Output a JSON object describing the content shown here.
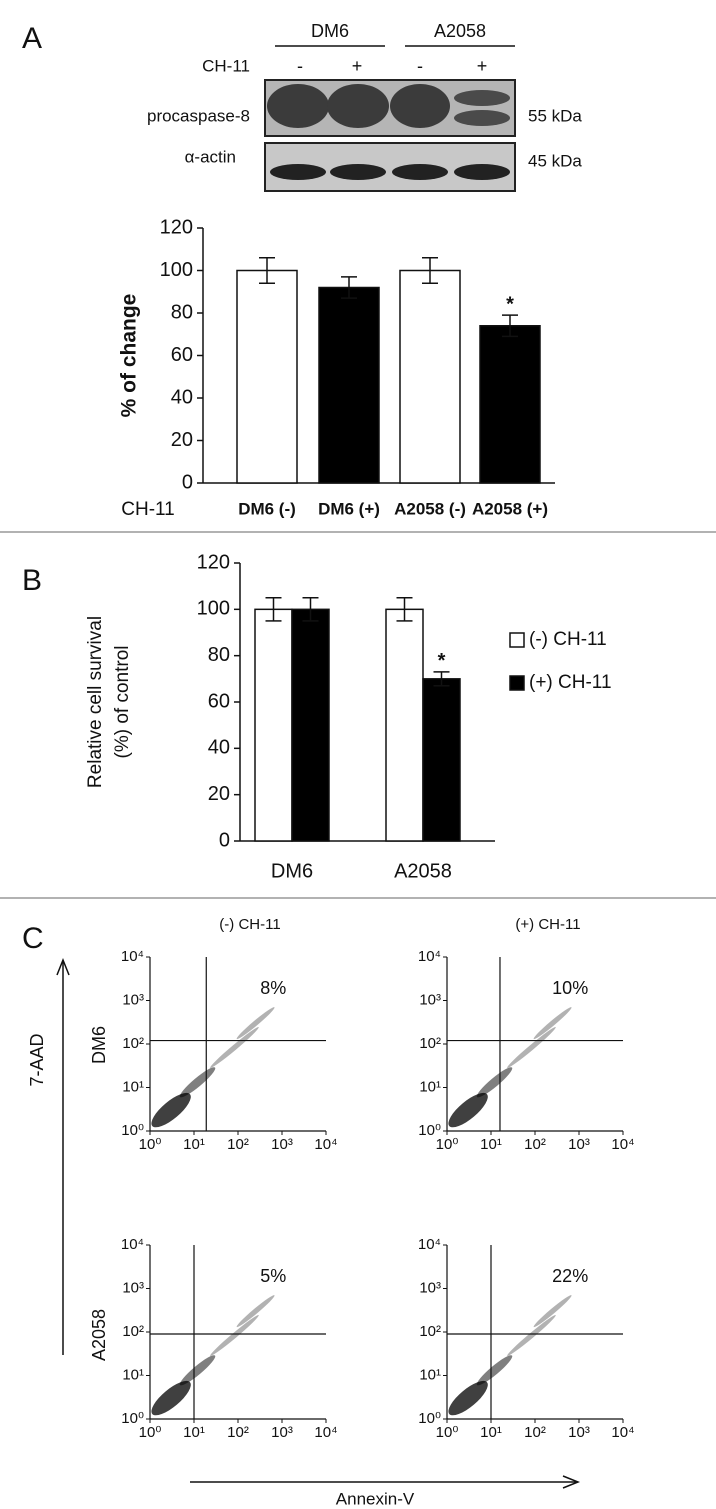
{
  "panel_labels": [
    "A",
    "B",
    "C"
  ],
  "blot": {
    "groups": [
      "DM6",
      "A2058"
    ],
    "treatment_label": "CH-11",
    "treatments": [
      "-",
      "+",
      "-",
      "+"
    ],
    "rows": [
      {
        "label": "procaspase-8",
        "size": "55 kDa"
      },
      {
        "label": "α-actin",
        "size": "45 kDa"
      }
    ]
  },
  "panel_c": {
    "column_titles": [
      "(-) CH-11",
      "(+) CH-11"
    ],
    "row_labels": [
      "DM6",
      "A2058"
    ],
    "y_label": "7-AAD",
    "x_label": "Annexin-V"
  },
  "chart_data": [
    {
      "type": "bar",
      "ylabel": "% of change",
      "xlabel": "CH-11",
      "categories": [
        "DM6 (-)",
        "DM6 (+)",
        "A2058 (-)",
        "A2058 (+)"
      ],
      "values": [
        100,
        92,
        100,
        74
      ],
      "errors": [
        6,
        5,
        6,
        5
      ],
      "colors": [
        "#ffffff",
        "#000000",
        "#ffffff",
        "#000000"
      ],
      "markers": [
        null,
        null,
        null,
        "*"
      ],
      "ylim": [
        0,
        120
      ],
      "yticks": [
        0,
        20,
        40,
        60,
        80,
        100,
        120
      ]
    },
    {
      "type": "grouped-bar",
      "ylabel": [
        "Relative cell survival",
        "(%) of control"
      ],
      "categories": [
        "DM6",
        "A2058"
      ],
      "series": [
        {
          "name": "(-) CH-11",
          "color": "#ffffff",
          "values": [
            100,
            100
          ],
          "errors": [
            5,
            5
          ],
          "markers": [
            null,
            null
          ]
        },
        {
          "name": "(+) CH-11",
          "color": "#000000",
          "values": [
            100,
            70
          ],
          "errors": [
            5,
            3
          ],
          "markers": [
            null,
            "*"
          ]
        }
      ],
      "ylim": [
        0,
        120
      ],
      "yticks": [
        0,
        20,
        40,
        60,
        80,
        100,
        120
      ]
    },
    {
      "type": "flow",
      "annotation": "8%",
      "xscale": "log",
      "yscale": "log",
      "xlim": [
        1,
        10000
      ],
      "ylim": [
        1,
        10000
      ],
      "xticks": [
        {
          "value": 1,
          "label": "10⁰"
        },
        {
          "value": 10,
          "label": "10¹"
        },
        {
          "value": 100,
          "label": "10²"
        },
        {
          "value": 1000,
          "label": "10³"
        },
        {
          "value": 10000,
          "label": "10⁴"
        }
      ],
      "yticks": [
        {
          "value": 1,
          "label": "10⁰"
        },
        {
          "value": 10,
          "label": "10¹"
        },
        {
          "value": 100,
          "label": "10²"
        },
        {
          "value": 1000,
          "label": "10³"
        },
        {
          "value": 10000,
          "label": "10⁴"
        }
      ],
      "gate": [
        19,
        120
      ]
    },
    {
      "type": "flow",
      "annotation": "10%",
      "xscale": "log",
      "yscale": "log",
      "xlim": [
        1,
        10000
      ],
      "ylim": [
        1,
        10000
      ],
      "xticks": [
        {
          "value": 1,
          "label": "10⁰"
        },
        {
          "value": 10,
          "label": "10¹"
        },
        {
          "value": 100,
          "label": "10²"
        },
        {
          "value": 1000,
          "label": "10³"
        },
        {
          "value": 10000,
          "label": "10⁴"
        }
      ],
      "yticks": [
        {
          "value": 1,
          "label": "10⁰"
        },
        {
          "value": 10,
          "label": "10¹"
        },
        {
          "value": 100,
          "label": "10²"
        },
        {
          "value": 1000,
          "label": "10³"
        },
        {
          "value": 10000,
          "label": "10⁴"
        }
      ],
      "gate": [
        16,
        120
      ]
    },
    {
      "type": "flow",
      "annotation": "5%",
      "xscale": "log",
      "yscale": "log",
      "xlim": [
        1,
        10000
      ],
      "ylim": [
        1,
        10000
      ],
      "xticks": [
        {
          "value": 1,
          "label": "10⁰"
        },
        {
          "value": 10,
          "label": "10¹"
        },
        {
          "value": 100,
          "label": "10²"
        },
        {
          "value": 1000,
          "label": "10³"
        },
        {
          "value": 10000,
          "label": "10⁴"
        }
      ],
      "yticks": [
        {
          "value": 1,
          "label": "10⁰"
        },
        {
          "value": 10,
          "label": "10¹"
        },
        {
          "value": 100,
          "label": "10²"
        },
        {
          "value": 1000,
          "label": "10³"
        },
        {
          "value": 10000,
          "label": "10⁴"
        }
      ],
      "gate": [
        10,
        90
      ]
    },
    {
      "type": "flow",
      "annotation": "22%",
      "xscale": "log",
      "yscale": "log",
      "xlim": [
        1,
        10000
      ],
      "ylim": [
        1,
        10000
      ],
      "xticks": [
        {
          "value": 1,
          "label": "10⁰"
        },
        {
          "value": 10,
          "label": "10¹"
        },
        {
          "value": 100,
          "label": "10²"
        },
        {
          "value": 1000,
          "label": "10³"
        },
        {
          "value": 10000,
          "label": "10⁴"
        }
      ],
      "yticks": [
        {
          "value": 1,
          "label": "10⁰"
        },
        {
          "value": 10,
          "label": "10¹"
        },
        {
          "value": 100,
          "label": "10²"
        },
        {
          "value": 1000,
          "label": "10³"
        },
        {
          "value": 10000,
          "label": "10⁴"
        }
      ],
      "gate": [
        10,
        90
      ]
    }
  ]
}
